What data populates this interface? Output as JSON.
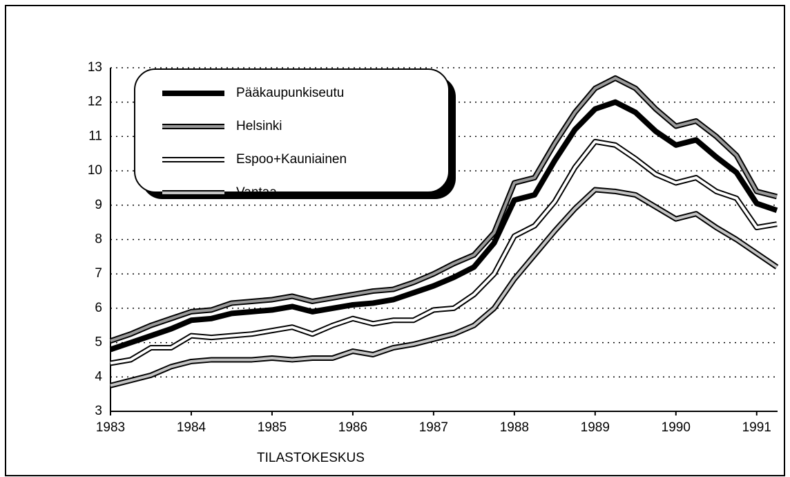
{
  "chart_data": {
    "type": "line",
    "xlabel": "TILASTOKESKUS",
    "x": [
      1983,
      1983.25,
      1983.5,
      1983.75,
      1984,
      1984.25,
      1984.5,
      1984.75,
      1985,
      1985.25,
      1985.5,
      1985.75,
      1986,
      1986.25,
      1986.5,
      1986.75,
      1987,
      1987.25,
      1987.5,
      1987.75,
      1988,
      1988.25,
      1988.5,
      1988.75,
      1989,
      1989.25,
      1989.5,
      1989.75,
      1990,
      1990.25,
      1990.5,
      1990.75,
      1991,
      1991.25
    ],
    "xlim": [
      1983,
      1991.25
    ],
    "xticks": [
      1983,
      1984,
      1985,
      1986,
      1987,
      1988,
      1989,
      1990,
      1991
    ],
    "ylim": [
      3,
      13
    ],
    "yticks": [
      3,
      4,
      5,
      6,
      7,
      8,
      9,
      10,
      11,
      12,
      13
    ],
    "grid": true,
    "series": [
      {
        "name": "Pääkaupunkiseutu",
        "color": "#000000",
        "values": [
          4.8,
          5.0,
          5.2,
          5.4,
          5.65,
          5.7,
          5.85,
          5.9,
          5.95,
          6.05,
          5.9,
          6.0,
          6.1,
          6.15,
          6.25,
          6.45,
          6.65,
          6.9,
          7.2,
          7.9,
          9.15,
          9.3,
          10.3,
          11.2,
          11.8,
          12.0,
          11.7,
          11.15,
          10.75,
          10.9,
          10.4,
          9.95,
          9.05,
          8.85
        ]
      },
      {
        "name": "Helsinki",
        "color": "#9a9a9a",
        "values": [
          5.05,
          5.25,
          5.5,
          5.7,
          5.9,
          5.95,
          6.15,
          6.2,
          6.25,
          6.35,
          6.2,
          6.3,
          6.4,
          6.5,
          6.55,
          6.75,
          7.0,
          7.3,
          7.55,
          8.2,
          9.65,
          9.8,
          10.8,
          11.7,
          12.4,
          12.7,
          12.4,
          11.8,
          11.3,
          11.45,
          11.0,
          10.45,
          9.4,
          9.25
        ]
      },
      {
        "name": "Espoo+Kauniainen",
        "color": "#ffffff",
        "values": [
          4.4,
          4.5,
          4.85,
          4.85,
          5.2,
          5.15,
          5.2,
          5.25,
          5.35,
          5.45,
          5.25,
          5.5,
          5.7,
          5.55,
          5.65,
          5.65,
          5.95,
          6.0,
          6.4,
          7.0,
          8.1,
          8.4,
          9.1,
          10.1,
          10.85,
          10.75,
          10.35,
          9.9,
          9.65,
          9.8,
          9.4,
          9.2,
          8.35,
          8.45
        ]
      },
      {
        "name": "Vantaa",
        "color": "#c4c4c4",
        "values": [
          3.75,
          3.9,
          4.05,
          4.3,
          4.45,
          4.5,
          4.5,
          4.5,
          4.55,
          4.5,
          4.55,
          4.55,
          4.75,
          4.65,
          4.85,
          4.95,
          5.1,
          5.25,
          5.5,
          6.0,
          6.85,
          7.55,
          8.25,
          8.9,
          9.45,
          9.4,
          9.3,
          8.95,
          8.6,
          8.75,
          8.35,
          8.0,
          7.6,
          7.2
        ]
      }
    ]
  }
}
